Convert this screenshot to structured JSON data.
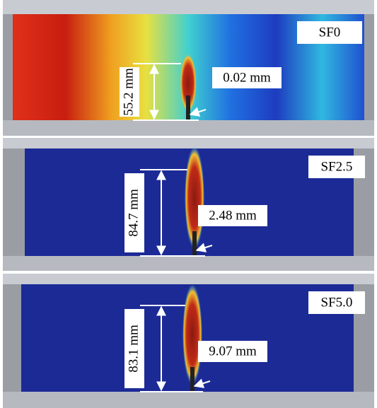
{
  "panels": [
    {
      "label": "SF0",
      "crack_length": "55.2 mm",
      "crack_opening": "0.02 mm"
    },
    {
      "label": "SF2.5",
      "crack_length": "84.7 mm",
      "crack_opening": "2.48 mm"
    },
    {
      "label": "SF5.0",
      "crack_length": "83.1 mm",
      "crack_opening": "9.07 mm"
    }
  ]
}
